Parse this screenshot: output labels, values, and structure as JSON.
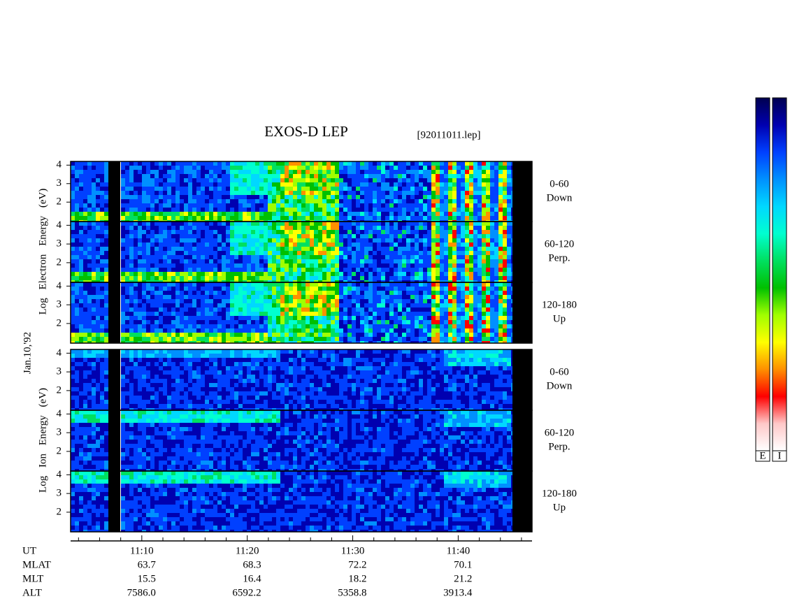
{
  "chart_data": {
    "type": "spectrogram",
    "title": "EXOS-D LEP",
    "subtitle": "[92011011.lep]",
    "date_label": "Jan.10,'92",
    "groups": [
      {
        "ylabel": "Log Electron Energy (eV)",
        "panels": [
          {
            "label": [
              "0-60",
              "Down"
            ]
          },
          {
            "label": [
              "60-120",
              "Perp."
            ]
          },
          {
            "label": [
              "120-180",
              "Up"
            ]
          }
        ]
      },
      {
        "ylabel": "Log Ion Energy (eV)",
        "panels": [
          {
            "label": [
              "0-60",
              "Down"
            ]
          },
          {
            "label": [
              "60-120",
              "Perp."
            ]
          },
          {
            "label": [
              "120-180",
              "Up"
            ]
          }
        ]
      }
    ],
    "ylim": [
      0.95,
      4.2
    ],
    "yticks": [
      2,
      3,
      4
    ],
    "xlim": [
      663.25,
      707
    ],
    "xticks": [
      {
        "value": 670,
        "label": "11:10"
      },
      {
        "value": 680,
        "label": "11:20"
      },
      {
        "value": 690,
        "label": "11:30"
      },
      {
        "value": 700,
        "label": "11:40"
      }
    ],
    "xminor_ticks": [
      664,
      666,
      668,
      672,
      674,
      676,
      678,
      682,
      684,
      686,
      688,
      692,
      694,
      696,
      698,
      702,
      704,
      706
    ],
    "ephemeris": {
      "axis_label": "UT",
      "rows": [
        {
          "label": "MLAT",
          "values": [
            "63.7",
            "68.3",
            "72.2",
            "70.1"
          ]
        },
        {
          "label": "MLT",
          "values": [
            "15.5",
            "16.4",
            "18.2",
            "21.2"
          ]
        },
        {
          "label": "ALT",
          "values": [
            "7586.0",
            "6592.2",
            "5358.8",
            "3913.4"
          ]
        }
      ]
    },
    "colorbar": {
      "labels": [
        "E",
        "I"
      ],
      "colors": [
        "#000050",
        "#0000b0",
        "#0040ff",
        "#0090ff",
        "#00d8ff",
        "#00ffd0",
        "#00e060",
        "#00c000",
        "#a0ff00",
        "#ffff00",
        "#ff9000",
        "#ff0000",
        "#ffc8c8",
        "#ffffff"
      ]
    }
  }
}
